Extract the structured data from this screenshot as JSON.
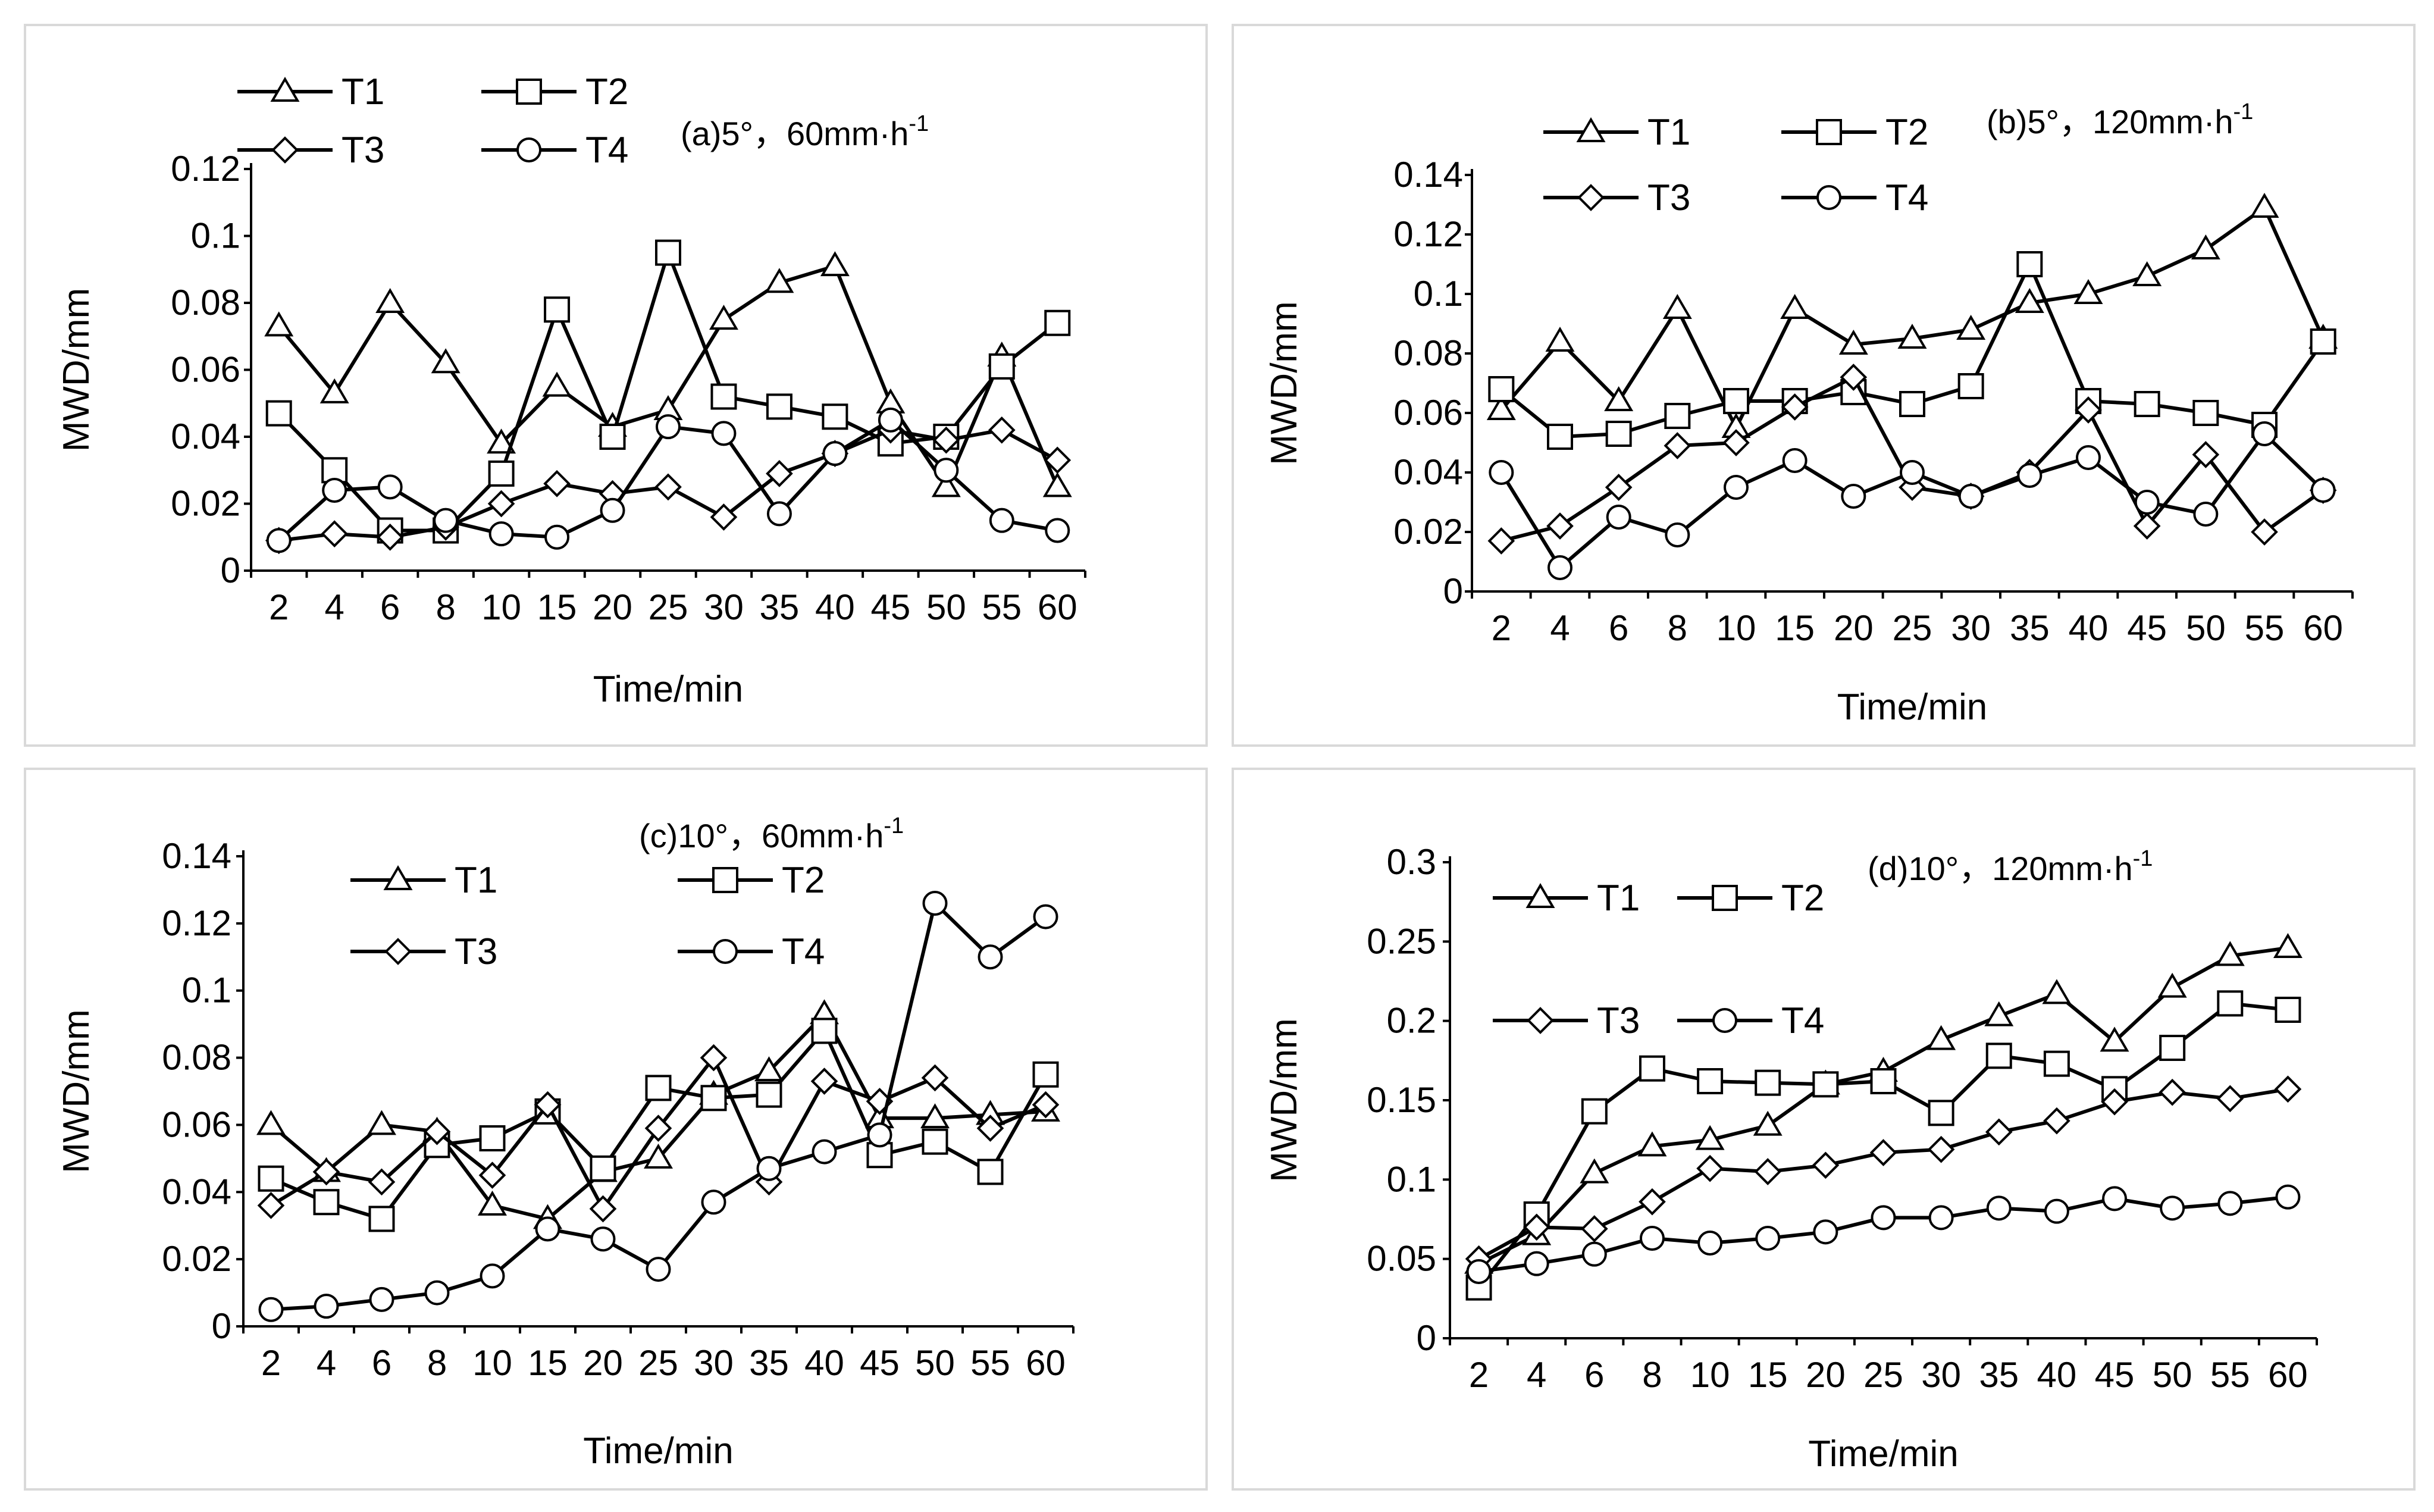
{
  "colors": {
    "line": "#000000",
    "marker_fill": "#ffffff",
    "frame": "#d9d9d9",
    "background": "#ffffff"
  },
  "chart_data": [
    {
      "id": "a",
      "type": "line",
      "title": "(a)5°，60mm·h",
      "title_sup": "-1",
      "xlabel": "Time/min",
      "ylabel": "MWD/mm",
      "categories": [
        "2",
        "4",
        "6",
        "8",
        "10",
        "15",
        "20",
        "25",
        "30",
        "35",
        "40",
        "45",
        "50",
        "55",
        "60"
      ],
      "ylim": [
        0,
        0.12
      ],
      "yticks": [
        0,
        0.02,
        0.04,
        0.06,
        0.08,
        0.1,
        0.12
      ],
      "ytick_labels": [
        "0",
        "0.02",
        "0.04",
        "0.06",
        "0.08",
        "0.1",
        "0.12"
      ],
      "legend": "top-left",
      "series": [
        {
          "name": "T1",
          "marker": "triangle",
          "values": [
            0.073,
            0.053,
            0.08,
            0.062,
            0.038,
            0.055,
            0.043,
            0.048,
            0.075,
            0.086,
            0.091,
            0.05,
            0.025,
            0.064,
            0.025
          ]
        },
        {
          "name": "T2",
          "marker": "square",
          "values": [
            0.047,
            0.03,
            0.012,
            0.012,
            0.029,
            0.078,
            0.04,
            0.095,
            0.052,
            0.049,
            0.046,
            0.038,
            0.04,
            0.061,
            0.074
          ]
        },
        {
          "name": "T3",
          "marker": "diamond",
          "values": [
            0.009,
            0.011,
            0.01,
            0.013,
            0.02,
            0.026,
            0.023,
            0.025,
            0.016,
            0.029,
            0.035,
            0.042,
            0.039,
            0.042,
            0.033
          ]
        },
        {
          "name": "T4",
          "marker": "circle",
          "values": [
            0.009,
            0.024,
            0.025,
            0.015,
            0.011,
            0.01,
            0.018,
            0.043,
            0.041,
            0.017,
            0.035,
            0.045,
            0.03,
            0.015,
            0.012
          ]
        }
      ]
    },
    {
      "id": "b",
      "type": "line",
      "title": "(b)5°，120mm·h",
      "title_sup": "-1",
      "xlabel": "Time/min",
      "ylabel": "MWD/mm",
      "categories": [
        "2",
        "4",
        "6",
        "8",
        "10",
        "15",
        "20",
        "25",
        "30",
        "35",
        "40",
        "45",
        "50",
        "55",
        "60"
      ],
      "ylim": [
        0,
        0.14
      ],
      "yticks": [
        0,
        0.02,
        0.04,
        0.06,
        0.08,
        0.1,
        0.12,
        0.14
      ],
      "ytick_labels": [
        "0",
        "0.02",
        "0.04",
        "0.06",
        "0.08",
        "0.1",
        "0.12",
        "0.14"
      ],
      "legend": "top-left",
      "series": [
        {
          "name": "T1",
          "marker": "triangle",
          "values": [
            0.061,
            0.084,
            0.064,
            0.095,
            0.055,
            0.095,
            0.083,
            0.085,
            0.088,
            0.097,
            0.1,
            0.106,
            0.115,
            0.129,
            0.085
          ]
        },
        {
          "name": "T2",
          "marker": "square",
          "values": [
            0.068,
            0.052,
            0.053,
            0.059,
            0.064,
            0.064,
            0.067,
            0.063,
            0.069,
            0.11,
            0.064,
            0.063,
            0.06,
            0.056,
            0.084
          ]
        },
        {
          "name": "T3",
          "marker": "diamond",
          "values": [
            0.017,
            0.022,
            0.035,
            0.049,
            0.05,
            0.062,
            0.072,
            0.035,
            0.032,
            0.04,
            0.061,
            0.022,
            0.046,
            0.02,
            0.034
          ]
        },
        {
          "name": "T4",
          "marker": "circle",
          "values": [
            0.04,
            0.008,
            0.025,
            0.019,
            0.035,
            0.044,
            0.032,
            0.04,
            0.032,
            0.039,
            0.045,
            0.03,
            0.026,
            0.053,
            0.034
          ]
        }
      ]
    },
    {
      "id": "c",
      "type": "line",
      "title": "(c)10°，60mm·h",
      "title_sup": "-1",
      "xlabel": "Time/min",
      "ylabel": "MWD/mm",
      "categories": [
        "2",
        "4",
        "6",
        "8",
        "10",
        "15",
        "20",
        "25",
        "30",
        "35",
        "40",
        "45",
        "50",
        "55",
        "60"
      ],
      "ylim": [
        0,
        0.14
      ],
      "yticks": [
        0,
        0.02,
        0.04,
        0.06,
        0.08,
        0.1,
        0.12,
        0.14
      ],
      "ytick_labels": [
        "0",
        "0.02",
        "0.04",
        "0.06",
        "0.08",
        "0.1",
        "0.12",
        "0.14"
      ],
      "legend": "top-center",
      "series": [
        {
          "name": "T1",
          "marker": "triangle",
          "values": [
            0.06,
            0.046,
            0.06,
            0.058,
            0.036,
            0.032,
            0.046,
            0.05,
            0.069,
            0.076,
            0.093,
            0.062,
            0.062,
            0.063,
            0.064
          ]
        },
        {
          "name": "T2",
          "marker": "square",
          "values": [
            0.044,
            0.037,
            0.032,
            0.054,
            0.056,
            0.064,
            0.047,
            0.071,
            0.068,
            0.069,
            0.088,
            0.051,
            0.055,
            0.046,
            0.075
          ]
        },
        {
          "name": "T3",
          "marker": "diamond",
          "values": [
            0.036,
            0.046,
            0.043,
            0.058,
            0.045,
            0.066,
            0.035,
            0.059,
            0.08,
            0.043,
            0.073,
            0.067,
            0.074,
            0.059,
            0.066
          ]
        },
        {
          "name": "T4",
          "marker": "circle",
          "values": [
            0.005,
            0.006,
            0.008,
            0.01,
            0.015,
            0.029,
            0.026,
            0.017,
            0.037,
            0.047,
            0.052,
            0.057,
            0.126,
            0.11,
            0.122
          ]
        }
      ]
    },
    {
      "id": "d",
      "type": "line",
      "title": "(d)10°，120mm·h",
      "title_sup": "-1",
      "xlabel": "Time/min",
      "ylabel": "MWD/mm",
      "categories": [
        "2",
        "4",
        "6",
        "8",
        "10",
        "15",
        "20",
        "25",
        "30",
        "35",
        "40",
        "45",
        "50",
        "55",
        "60"
      ],
      "ylim": [
        0,
        0.3
      ],
      "yticks": [
        0,
        0.05,
        0.1,
        0.15,
        0.2,
        0.25,
        0.3
      ],
      "ytick_labels": [
        "0",
        "0.05",
        "0.1",
        "0.15",
        "0.2",
        "0.25",
        "0.3"
      ],
      "legend": "top-left",
      "series": [
        {
          "name": "T1",
          "marker": "triangle",
          "values": [
            0.047,
            0.065,
            0.104,
            0.121,
            0.125,
            0.134,
            0.16,
            0.168,
            0.188,
            0.203,
            0.217,
            0.187,
            0.221,
            0.241,
            0.246
          ]
        },
        {
          "name": "T2",
          "marker": "square",
          "values": [
            0.032,
            0.078,
            0.143,
            0.17,
            0.162,
            0.161,
            0.16,
            0.162,
            0.142,
            0.178,
            0.173,
            0.157,
            0.183,
            0.211,
            0.207
          ]
        },
        {
          "name": "T3",
          "marker": "diamond",
          "values": [
            0.05,
            0.07,
            0.069,
            0.086,
            0.107,
            0.105,
            0.109,
            0.117,
            0.119,
            0.13,
            0.137,
            0.149,
            0.155,
            0.151,
            0.157
          ]
        },
        {
          "name": "T4",
          "marker": "circle",
          "values": [
            0.042,
            0.047,
            0.053,
            0.063,
            0.06,
            0.063,
            0.067,
            0.076,
            0.076,
            0.082,
            0.08,
            0.088,
            0.082,
            0.085,
            0.089
          ]
        }
      ]
    }
  ]
}
